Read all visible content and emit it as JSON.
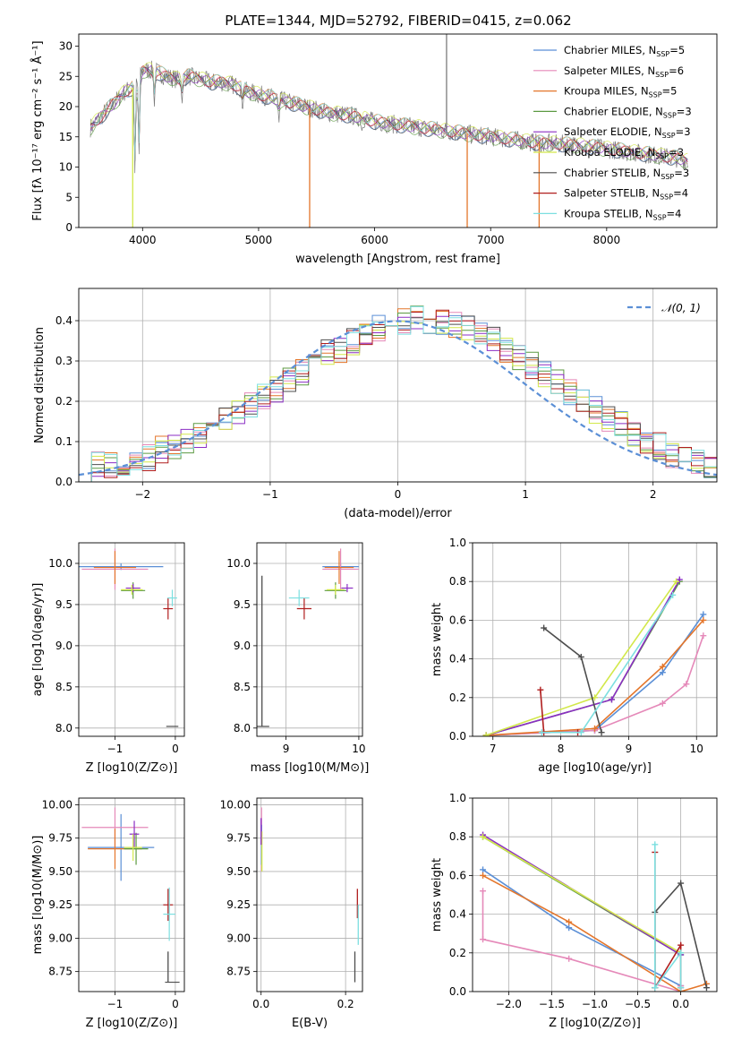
{
  "title": "PLATE=1344, MJD=52792, FIBERID=0415, z=0.062",
  "colors": {
    "Chabrier MILES": "#5b8fd6",
    "Salpeter MILES": "#e589b9",
    "Kroupa MILES": "#e4762b",
    "Chabrier ELODIE": "#5c9a42",
    "Salpeter ELODIE": "#8b2ec4",
    "Kroupa ELODIE": "#d2e84a",
    "Chabrier STELIB": "#4d4d4d",
    "Salpeter STELIB": "#b01e1e",
    "Kroupa STELIB": "#7cdfe0",
    "data": "#7a7a7a"
  },
  "chart_data": [
    {
      "type": "line",
      "id": "spectrum",
      "xlabel": "wavelength [Angstrom, rest frame]",
      "ylabel": "Flux [fλ 10⁻¹⁷ erg cm⁻² s⁻¹ Å⁻¹]",
      "xlim": [
        3450,
        8950
      ],
      "ylim": [
        0,
        32
      ],
      "xticks": [
        4000,
        5000,
        6000,
        7000,
        8000
      ],
      "yticks": [
        0,
        5,
        10,
        15,
        20,
        25,
        30
      ],
      "grid": false,
      "legend_placement": "upper right",
      "legend": [
        {
          "name": "Chabrier MILES",
          "nssp": "5"
        },
        {
          "name": "Salpeter MILES",
          "nssp": "6"
        },
        {
          "name": "Kroupa MILES",
          "nssp": "5"
        },
        {
          "name": "Chabrier ELODIE",
          "nssp": "3"
        },
        {
          "name": "Salpeter ELODIE",
          "nssp": "3"
        },
        {
          "name": "Kroupa ELODIE",
          "nssp": "3"
        },
        {
          "name": "Chabrier STELIB",
          "nssp": "3"
        },
        {
          "name": "Salpeter STELIB",
          "nssp": "4"
        },
        {
          "name": "Kroupa STELIB",
          "nssp": "4"
        }
      ],
      "continuum_x": [
        3550,
        3650,
        3750,
        3850,
        3950,
        4000,
        4100,
        4200,
        4300,
        4400,
        4500,
        4600,
        4700,
        4800,
        4900,
        5000,
        5200,
        5400,
        5600,
        5800,
        6000,
        6200,
        6400,
        6600,
        6800,
        7000,
        7200,
        7400,
        7600,
        7800,
        8000,
        8200,
        8400,
        8600,
        8700
      ],
      "continuum_y": [
        16.5,
        18.5,
        20.5,
        22.5,
        23.5,
        26.0,
        26.0,
        25.0,
        24.5,
        25.0,
        24.5,
        24.0,
        24.0,
        23.5,
        22.5,
        22.0,
        21.0,
        20.0,
        19.0,
        18.5,
        17.5,
        17.0,
        16.5,
        16.0,
        15.5,
        15.0,
        14.5,
        14.0,
        13.8,
        13.5,
        13.0,
        12.5,
        12.0,
        11.5,
        11.0
      ],
      "absorption_lines": [
        {
          "x": 3934,
          "y": 9
        },
        {
          "x": 3969,
          "y": 11
        },
        {
          "x": 4102,
          "y": 20
        },
        {
          "x": 4340,
          "y": 20
        },
        {
          "x": 4861,
          "y": 19
        },
        {
          "x": 5175,
          "y": 17
        },
        {
          "x": 5890,
          "y": 16
        },
        {
          "x": 7000,
          "y": 14
        }
      ],
      "spikes": [
        {
          "x": 3915,
          "y": 0,
          "color": "Kroupa ELODIE"
        },
        {
          "x": 5440,
          "y": 0,
          "color": "Kroupa MILES"
        },
        {
          "x": 6798,
          "y": 0,
          "color": "Kroupa MILES"
        },
        {
          "x": 7418,
          "y": 0,
          "color": "Kroupa MILES"
        },
        {
          "x": 6620,
          "y": 32,
          "color": "data"
        }
      ]
    },
    {
      "type": "line",
      "id": "residuals",
      "xlabel": "(data-model)/error",
      "ylabel": "Normed distribution",
      "xlim": [
        -2.5,
        2.5
      ],
      "ylim": [
        0,
        0.48
      ],
      "xticks": [
        -2,
        -1,
        0,
        1,
        2
      ],
      "yticks": [
        0.0,
        0.1,
        0.2,
        0.3,
        0.4
      ],
      "grid": true,
      "legend": [
        {
          "name": "𝒩(0, 1)"
        }
      ],
      "bin_edges_start": -2.5,
      "bin_width": 0.1,
      "base_series": [
        0.03,
        0.04,
        0.04,
        0.05,
        0.05,
        0.06,
        0.08,
        0.09,
        0.1,
        0.12,
        0.13,
        0.15,
        0.17,
        0.19,
        0.21,
        0.23,
        0.25,
        0.27,
        0.3,
        0.32,
        0.33,
        0.35,
        0.37,
        0.38,
        0.39,
        0.4,
        0.41,
        0.4,
        0.4,
        0.39,
        0.38,
        0.36,
        0.35,
        0.33,
        0.31,
        0.29,
        0.27,
        0.25,
        0.22,
        0.2,
        0.18,
        0.16,
        0.14,
        0.12,
        0.1,
        0.09,
        0.07,
        0.06,
        0.05,
        0.04
      ],
      "normal_curve": {
        "mu": 0,
        "sigma": 1
      }
    },
    {
      "type": "scatter",
      "id": "age_vs_Z",
      "xlabel": "Z [log10(Z/Z⊙)]",
      "ylabel": "age  [log10(age/yr)]",
      "xlim": [
        -1.6,
        0.15
      ],
      "ylim": [
        7.9,
        10.25
      ],
      "xticks": [
        -1,
        0
      ],
      "yticks": [
        8.0,
        8.5,
        9.0,
        9.5,
        10.0
      ],
      "grid": true,
      "points": [
        {
          "s": "Chabrier MILES",
          "x": -0.9,
          "y": 9.96,
          "xe": 0.7,
          "ye": 0.04
        },
        {
          "s": "Salpeter MILES",
          "x": -1.0,
          "y": 9.93,
          "xe": 0.55,
          "ye": 0.25
        },
        {
          "s": "Kroupa MILES",
          "x": -1.0,
          "y": 9.95,
          "xe": 0.35,
          "ye": 0.2
        },
        {
          "s": "Chabrier ELODIE",
          "x": -0.7,
          "y": 9.67,
          "xe": 0.2,
          "ye": 0.1
        },
        {
          "s": "Salpeter ELODIE",
          "x": -0.7,
          "y": 9.7,
          "xe": 0.12,
          "ye": 0.05
        },
        {
          "s": "Kroupa ELODIE",
          "x": -0.72,
          "y": 9.68,
          "xe": 0.18,
          "ye": 0.06
        },
        {
          "s": "Chabrier STELIB",
          "x": -0.05,
          "y": 8.02,
          "xe": 0.1,
          "ye": 0.0
        },
        {
          "s": "Salpeter STELIB",
          "x": -0.12,
          "y": 9.45,
          "xe": 0.08,
          "ye": 0.13
        },
        {
          "s": "Kroupa STELIB",
          "x": -0.05,
          "y": 9.58,
          "xe": 0.08,
          "ye": 0.1
        }
      ]
    },
    {
      "type": "scatter",
      "id": "age_vs_mass",
      "xlabel": "mass [log10(M/M⊙)]",
      "ylabel": "",
      "xlim": [
        8.6,
        10.05
      ],
      "ylim": [
        7.9,
        10.25
      ],
      "xticks": [
        9,
        10
      ],
      "yticks": [
        8.0,
        8.5,
        9.0,
        9.5,
        10.0
      ],
      "grid": true,
      "points": [
        {
          "s": "Chabrier MILES",
          "x": 9.75,
          "y": 9.96,
          "xe": 0.25,
          "ye": 0.04
        },
        {
          "s": "Salpeter MILES",
          "x": 9.75,
          "y": 9.93,
          "xe": 0.25,
          "ye": 0.25
        },
        {
          "s": "Kroupa MILES",
          "x": 9.73,
          "y": 9.95,
          "xe": 0.2,
          "ye": 0.2
        },
        {
          "s": "Chabrier ELODIE",
          "x": 9.68,
          "y": 9.67,
          "xe": 0.15,
          "ye": 0.1
        },
        {
          "s": "Salpeter ELODIE",
          "x": 9.84,
          "y": 9.7,
          "xe": 0.08,
          "ye": 0.05
        },
        {
          "s": "Kroupa ELODIE",
          "x": 9.68,
          "y": 9.68,
          "xe": 0.12,
          "ye": 0.06
        },
        {
          "s": "Chabrier STELIB",
          "x": 8.67,
          "y": 8.02,
          "xe": 0.1,
          "ye": 0.0
        },
        {
          "s": "Salpeter STELIB",
          "x": 9.25,
          "y": 9.45,
          "xe": 0.1,
          "ye": 0.13
        },
        {
          "s": "Kroupa STELIB",
          "x": 9.18,
          "y": 9.58,
          "xe": 0.14,
          "ye": 0.1
        }
      ],
      "vlines": [
        {
          "s": "Chabrier STELIB",
          "x": 8.67,
          "y0": 8.02,
          "y1": 9.85
        }
      ]
    },
    {
      "type": "line",
      "id": "massweight_vs_age",
      "xlabel": "age  [log10(age/yr)]",
      "ylabel": "mass weight",
      "xlim": [
        6.7,
        10.3
      ],
      "ylim": [
        0,
        1.0
      ],
      "xticks": [
        7,
        8,
        9,
        10
      ],
      "yticks": [
        0.0,
        0.2,
        0.4,
        0.6,
        0.8,
        1.0
      ],
      "grid": true,
      "series": [
        {
          "s": "Chabrier MILES",
          "x": [
            6.9,
            8.5,
            9.5,
            10.1
          ],
          "y": [
            0.005,
            0.03,
            0.33,
            0.63
          ]
        },
        {
          "s": "Salpeter MILES",
          "x": [
            6.9,
            8.5,
            9.5,
            9.85,
            10.1
          ],
          "y": [
            0.005,
            0.03,
            0.17,
            0.27,
            0.52
          ]
        },
        {
          "s": "Kroupa MILES",
          "x": [
            6.9,
            8.5,
            9.5,
            10.1
          ],
          "y": [
            0.005,
            0.04,
            0.36,
            0.6
          ]
        },
        {
          "s": "Chabrier ELODIE",
          "x": [
            6.9,
            8.75,
            9.75
          ],
          "y": [
            0.005,
            0.19,
            0.8
          ]
        },
        {
          "s": "Salpeter ELODIE",
          "x": [
            6.9,
            8.75,
            9.75
          ],
          "y": [
            0.005,
            0.19,
            0.81
          ]
        },
        {
          "s": "Kroupa ELODIE",
          "x": [
            6.9,
            8.5,
            9.7
          ],
          "y": [
            0.005,
            0.2,
            0.8
          ]
        },
        {
          "s": "Chabrier STELIB",
          "x": [
            7.75,
            8.3,
            8.6
          ],
          "y": [
            0.56,
            0.41,
            0.02
          ]
        },
        {
          "s": "Salpeter STELIB",
          "x": [
            7.7,
            7.75,
            8.25
          ],
          "y": [
            0.24,
            0.02,
            0.02
          ]
        },
        {
          "s": "Kroupa STELIB",
          "x": [
            7.72,
            8.3,
            9.65
          ],
          "y": [
            0.02,
            0.02,
            0.73
          ]
        }
      ]
    },
    {
      "type": "scatter",
      "id": "mass_vs_Z",
      "xlabel": "Z [log10(Z/Z⊙)]",
      "ylabel": "mass [log10(M/M⊙)]",
      "xlim": [
        -1.6,
        0.15
      ],
      "ylim": [
        8.6,
        10.05
      ],
      "xticks": [
        -1,
        0
      ],
      "yticks": [
        8.75,
        9.0,
        9.25,
        9.5,
        9.75,
        10.0
      ],
      "grid": true,
      "points": [
        {
          "s": "Chabrier MILES",
          "x": -0.9,
          "y": 9.68,
          "xe": 0.55,
          "ye": 0.25
        },
        {
          "s": "Salpeter MILES",
          "x": -1.0,
          "y": 9.83,
          "xe": 0.55,
          "ye": 0.15
        },
        {
          "s": "Kroupa MILES",
          "x": -1.0,
          "y": 9.67,
          "xe": 0.45,
          "ye": 0.15
        },
        {
          "s": "Chabrier ELODIE",
          "x": -0.65,
          "y": 9.67,
          "xe": 0.2,
          "ye": 0.12
        },
        {
          "s": "Salpeter ELODIE",
          "x": -0.68,
          "y": 9.78,
          "xe": 0.08,
          "ye": 0.1
        },
        {
          "s": "Kroupa ELODIE",
          "x": -0.7,
          "y": 9.68,
          "xe": 0.15,
          "ye": 0.1
        },
        {
          "s": "Chabrier STELIB",
          "x": -0.05,
          "y": 8.67,
          "xe": 0.12,
          "ye": 0.0
        },
        {
          "s": "Salpeter STELIB",
          "x": -0.12,
          "y": 9.25,
          "xe": 0.08,
          "ye": 0.12
        },
        {
          "s": "Kroupa STELIB",
          "x": -0.1,
          "y": 9.18,
          "xe": 0.1,
          "ye": 0.2
        }
      ],
      "vlines": [
        {
          "s": "Chabrier STELIB",
          "x": -0.12,
          "y0": 8.67,
          "y1": 8.9
        }
      ]
    },
    {
      "type": "scatter",
      "id": "mass_vs_ebv",
      "xlabel": "E(B-V)",
      "ylabel": "",
      "xlim": [
        -0.01,
        0.24
      ],
      "ylim": [
        8.6,
        10.05
      ],
      "xticks": [
        0.0,
        0.2
      ],
      "yticks": [
        8.75,
        9.0,
        9.25,
        9.5,
        9.75,
        10.0
      ],
      "grid": true,
      "vsegments": [
        {
          "s": "Salpeter MILES",
          "x": 0.001,
          "y0": 9.5,
          "y1": 9.98
        },
        {
          "s": "Chabrier MILES",
          "x": 0.001,
          "y0": 9.55,
          "y1": 9.85
        },
        {
          "s": "Kroupa ELODIE",
          "x": 0.002,
          "y0": 9.5,
          "y1": 9.8
        },
        {
          "s": "Salpeter ELODIE",
          "x": 0.0,
          "y0": 9.7,
          "y1": 9.9
        },
        {
          "s": "Chabrier STELIB",
          "x": 0.222,
          "y0": 8.67,
          "y1": 8.9
        },
        {
          "s": "Salpeter STELIB",
          "x": 0.228,
          "y0": 9.15,
          "y1": 9.37
        },
        {
          "s": "Kroupa STELIB",
          "x": 0.23,
          "y0": 8.95,
          "y1": 9.25
        }
      ]
    },
    {
      "type": "line",
      "id": "massweight_vs_Z",
      "xlabel": "Z [log10(Z/Z⊙)]",
      "ylabel": "mass weight",
      "xlim": [
        -2.42,
        0.42
      ],
      "ylim": [
        0,
        1.0
      ],
      "xticks": [
        -2.0,
        -1.5,
        -1.0,
        -0.5,
        0.0
      ],
      "yticks": [
        0.0,
        0.2,
        0.4,
        0.6,
        0.8,
        1.0
      ],
      "grid": true,
      "series": [
        {
          "s": "Chabrier MILES",
          "x": [
            -2.3,
            -1.3,
            0.0,
            0.0
          ],
          "y": [
            0.63,
            0.33,
            0.03,
            0.0
          ]
        },
        {
          "s": "Salpeter MILES",
          "x": [
            -2.3,
            -2.3,
            -1.3,
            0.0,
            0.0
          ],
          "y": [
            0.52,
            0.27,
            0.17,
            0.0,
            0.03
          ]
        },
        {
          "s": "Kroupa MILES",
          "x": [
            -2.3,
            -1.3,
            0.0,
            0.3
          ],
          "y": [
            0.6,
            0.36,
            0.0,
            0.04
          ]
        },
        {
          "s": "Chabrier ELODIE",
          "x": [
            -2.3,
            0.0
          ],
          "y": [
            0.8,
            0.19
          ]
        },
        {
          "s": "Salpeter ELODIE",
          "x": [
            -2.3,
            0.0
          ],
          "y": [
            0.81,
            0.19
          ]
        },
        {
          "s": "Kroupa ELODIE",
          "x": [
            -2.3,
            0.0
          ],
          "y": [
            0.8,
            0.2
          ]
        },
        {
          "s": "Chabrier STELIB",
          "x": [
            0.3,
            0.0,
            -0.3,
            -0.3
          ],
          "y": [
            0.02,
            0.56,
            0.41,
            0.02
          ]
        },
        {
          "s": "Salpeter STELIB",
          "x": [
            -0.3,
            -0.3,
            0.0,
            0.0
          ],
          "y": [
            0.72,
            0.02,
            0.24,
            0.02
          ]
        },
        {
          "s": "Kroupa STELIB",
          "x": [
            -0.3,
            -0.3,
            0.0,
            0.0
          ],
          "y": [
            0.76,
            0.02,
            0.2,
            0.02
          ]
        }
      ]
    }
  ]
}
